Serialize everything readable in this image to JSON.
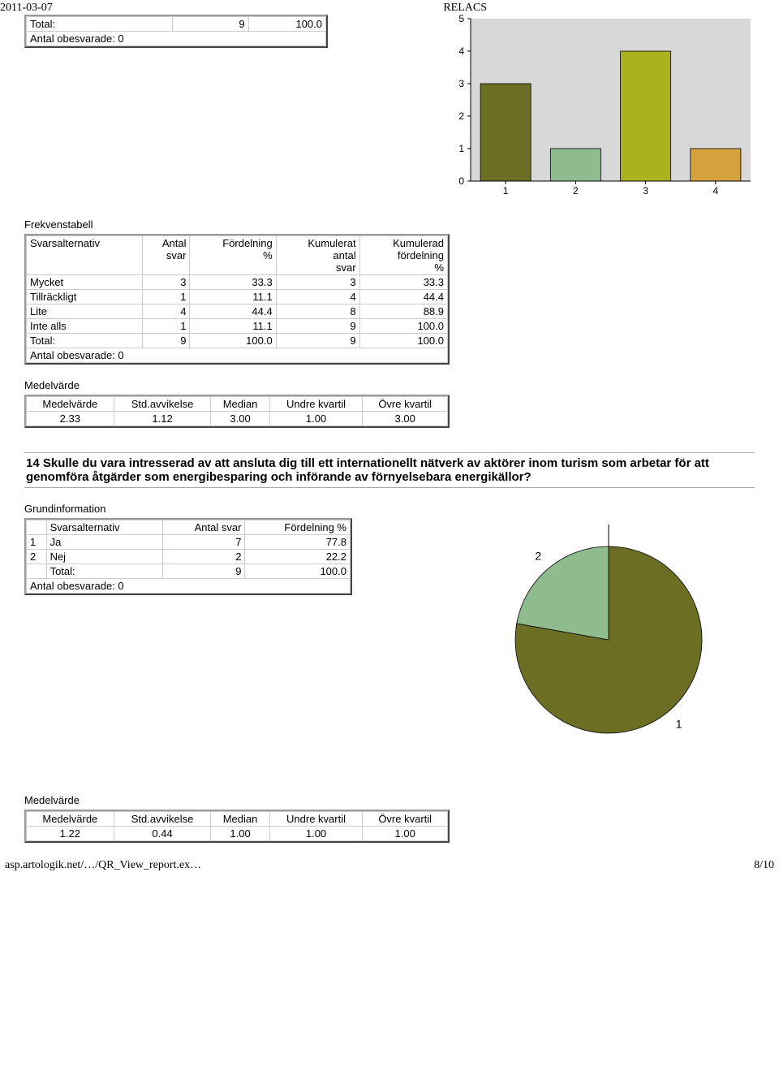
{
  "meta": {
    "date": "2011-03-07",
    "title": "RELACS",
    "footer_left": "asp.artologik.net/…/QR_View_report.ex…",
    "footer_right": "8/10"
  },
  "topTotal": {
    "label": "Total:",
    "svar": "9",
    "pct": "100.0",
    "unansweredLabel": "Antal obesvarade: 0"
  },
  "barChart": {
    "ymax": 5,
    "ytick": 1,
    "categories": [
      "1",
      "2",
      "3",
      "4"
    ],
    "values": [
      3,
      1,
      4,
      1
    ],
    "colors": [
      "#6b6e23",
      "#8fbc8f",
      "#aab21e",
      "#d5a13c"
    ],
    "bg": "#d8d8d8",
    "axis": "#000"
  },
  "freq": {
    "title": "Frekvenstabell",
    "headers": [
      "Svarsalternativ",
      "Antal svar",
      "Fördelning %",
      "Kumulerat antal svar",
      "Kumulerad fördelning %"
    ],
    "rows": [
      [
        "Mycket",
        "3",
        "33.3",
        "3",
        "33.3"
      ],
      [
        "Tillräckligt",
        "1",
        "11.1",
        "4",
        "44.4"
      ],
      [
        "Lite",
        "4",
        "44.4",
        "8",
        "88.9"
      ],
      [
        "Inte alls",
        "1",
        "11.1",
        "9",
        "100.0"
      ],
      [
        "Total:",
        "9",
        "100.0",
        "9",
        "100.0"
      ]
    ],
    "unanswered": "Antal obesvarade: 0"
  },
  "stats1": {
    "title": "Medelvärde",
    "headers": [
      "Medelvärde",
      "Std.avvikelse",
      "Median",
      "Undre kvartil",
      "Övre kvartil"
    ],
    "row": [
      "2.33",
      "1.12",
      "3.00",
      "1.00",
      "3.00"
    ]
  },
  "question": "14 Skulle du vara intresserad av att ansluta dig till ett internationellt nätverk av aktörer inom turism som arbetar för att genomföra åtgärder som energibesparing och införande av förnyelsebara energikällor?",
  "grund": {
    "title": "Grundinformation",
    "headers": [
      "",
      "Svarsalternativ",
      "Antal svar",
      "Fördelning %"
    ],
    "rows": [
      [
        "1",
        "Ja",
        "7",
        "77.8"
      ],
      [
        "2",
        "Nej",
        "2",
        "22.2"
      ],
      [
        "",
        "Total:",
        "9",
        "100.0"
      ]
    ],
    "unanswered": "Antal obesvarade: 0"
  },
  "pie": {
    "slices": [
      {
        "label": "1",
        "value": 77.8,
        "color": "#6b6e23"
      },
      {
        "label": "2",
        "value": 22.2,
        "color": "#8fbc8f"
      }
    ],
    "border": "#000"
  },
  "stats2": {
    "title": "Medelvärde",
    "headers": [
      "Medelvärde",
      "Std.avvikelse",
      "Median",
      "Undre kvartil",
      "Övre kvartil"
    ],
    "row": [
      "1.22",
      "0.44",
      "1.00",
      "1.00",
      "1.00"
    ]
  }
}
